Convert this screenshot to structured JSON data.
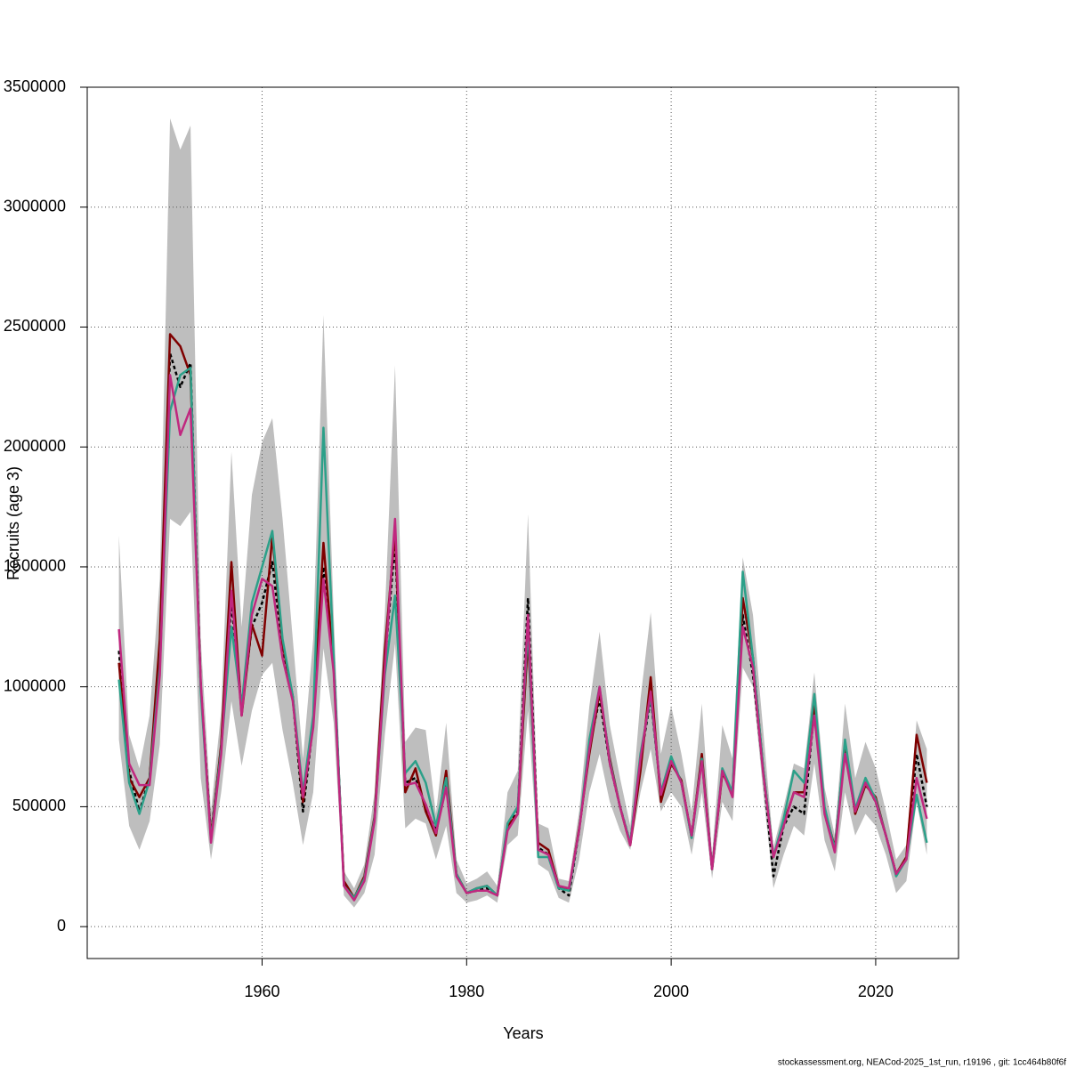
{
  "chart_data": {
    "type": "line",
    "x_label": "Years",
    "y_label": "Recruits (age 3)",
    "footer": "stockassessment.org, NEACod-2025_1st_run, r19196 , git: 1cc464b80f6f",
    "x": [
      1946,
      1947,
      1948,
      1949,
      1950,
      1951,
      1952,
      1953,
      1954,
      1955,
      1956,
      1957,
      1958,
      1959,
      1960,
      1961,
      1962,
      1963,
      1964,
      1965,
      1966,
      1967,
      1968,
      1969,
      1970,
      1971,
      1972,
      1973,
      1974,
      1975,
      1976,
      1977,
      1978,
      1979,
      1980,
      1981,
      1982,
      1983,
      1984,
      1985,
      1986,
      1987,
      1988,
      1989,
      1990,
      1991,
      1992,
      1993,
      1994,
      1995,
      1996,
      1997,
      1998,
      1999,
      2000,
      2001,
      2002,
      2003,
      2004,
      2005,
      2006,
      2007,
      2008,
      2009,
      2010,
      2011,
      2012,
      2013,
      2014,
      2015,
      2016,
      2017,
      2018,
      2019,
      2020,
      2021,
      2022,
      2023,
      2024,
      2025
    ],
    "xlim": [
      1942.9,
      2028.1
    ],
    "xticks": [
      1960,
      1980,
      2000,
      2020
    ],
    "ylim": [
      -133000,
      3500000
    ],
    "yticks": [
      0,
      500000,
      1000000,
      1500000,
      2000000,
      2500000,
      3000000,
      3500000
    ],
    "grid": true,
    "band": {
      "color": "#bebebe",
      "upper": [
        1630000,
        800000,
        660000,
        880000,
        1450000,
        3370000,
        3240000,
        3340000,
        1200000,
        480000,
        900000,
        1980000,
        1250000,
        1800000,
        2020000,
        2120000,
        1700000,
        1200000,
        700000,
        1200000,
        2550000,
        1300000,
        230000,
        160000,
        260000,
        560000,
        1300000,
        2340000,
        770000,
        830000,
        820000,
        470000,
        850000,
        280000,
        180000,
        200000,
        230000,
        170000,
        560000,
        650000,
        1720000,
        430000,
        410000,
        200000,
        190000,
        480000,
        920000,
        1230000,
        840000,
        620000,
        420000,
        950000,
        1310000,
        720000,
        920000,
        720000,
        480000,
        930000,
        300000,
        840000,
        700000,
        1540000,
        1300000,
        820000,
        330000,
        500000,
        680000,
        660000,
        1060000,
        580000,
        380000,
        930000,
        620000,
        770000,
        660000,
        480000,
        280000,
        340000,
        860000,
        740000
      ],
      "lower": [
        780000,
        420000,
        320000,
        440000,
        760000,
        1700000,
        1670000,
        1730000,
        620000,
        280000,
        560000,
        940000,
        670000,
        900000,
        1050000,
        1100000,
        820000,
        600000,
        340000,
        560000,
        1160000,
        850000,
        130000,
        80000,
        140000,
        300000,
        800000,
        1180000,
        410000,
        450000,
        430000,
        280000,
        420000,
        140000,
        100000,
        110000,
        130000,
        100000,
        340000,
        380000,
        900000,
        260000,
        230000,
        120000,
        100000,
        280000,
        560000,
        720000,
        520000,
        400000,
        320000,
        560000,
        740000,
        480000,
        560000,
        500000,
        300000,
        560000,
        200000,
        520000,
        440000,
        1080000,
        1000000,
        560000,
        160000,
        300000,
        420000,
        380000,
        680000,
        360000,
        230000,
        560000,
        380000,
        470000,
        420000,
        300000,
        140000,
        190000,
        520000,
        300000
      ]
    },
    "series": [
      {
        "color": "#000000",
        "dash": true,
        "values": [
          1150000,
          650000,
          480000,
          620000,
          1100000,
          2390000,
          2250000,
          2350000,
          1000000,
          380000,
          750000,
          1350000,
          900000,
          1250000,
          1350000,
          1520000,
          1150000,
          950000,
          480000,
          850000,
          1500000,
          1100000,
          180000,
          120000,
          200000,
          450000,
          1100000,
          1600000,
          600000,
          620000,
          500000,
          400000,
          600000,
          220000,
          140000,
          150000,
          160000,
          130000,
          420000,
          480000,
          1370000,
          330000,
          300000,
          160000,
          130000,
          400000,
          750000,
          950000,
          680000,
          500000,
          350000,
          700000,
          950000,
          560000,
          700000,
          600000,
          380000,
          700000,
          240000,
          650000,
          550000,
          1300000,
          1050000,
          650000,
          210000,
          420000,
          500000,
          470000,
          900000,
          480000,
          320000,
          750000,
          480000,
          600000,
          520000,
          380000,
          220000,
          280000,
          720000,
          500000
        ]
      },
      {
        "color": "#7f0000",
        "dash": false,
        "values": [
          1100000,
          620000,
          540000,
          620000,
          1200000,
          2470000,
          2420000,
          2300000,
          1000000,
          370000,
          760000,
          1520000,
          880000,
          1260000,
          1130000,
          1630000,
          1180000,
          960000,
          520000,
          860000,
          1600000,
          1080000,
          190000,
          120000,
          210000,
          460000,
          1150000,
          1650000,
          560000,
          660000,
          480000,
          380000,
          650000,
          220000,
          140000,
          160000,
          170000,
          130000,
          420000,
          470000,
          1200000,
          350000,
          320000,
          170000,
          150000,
          410000,
          720000,
          980000,
          700000,
          500000,
          340000,
          650000,
          1040000,
          520000,
          680000,
          610000,
          370000,
          720000,
          240000,
          640000,
          560000,
          1370000,
          1120000,
          660000,
          290000,
          430000,
          560000,
          560000,
          920000,
          490000,
          330000,
          760000,
          470000,
          590000,
          540000,
          380000,
          220000,
          290000,
          800000,
          600000
        ]
      },
      {
        "color": "#2ca089",
        "dash": false,
        "values": [
          1030000,
          600000,
          470000,
          610000,
          1080000,
          2150000,
          2300000,
          2330000,
          980000,
          360000,
          740000,
          1250000,
          920000,
          1350000,
          1500000,
          1650000,
          1200000,
          960000,
          560000,
          880000,
          2080000,
          1120000,
          170000,
          120000,
          200000,
          450000,
          1050000,
          1380000,
          640000,
          690000,
          600000,
          420000,
          620000,
          220000,
          140000,
          160000,
          170000,
          130000,
          430000,
          500000,
          1250000,
          290000,
          290000,
          160000,
          150000,
          400000,
          780000,
          1000000,
          690000,
          500000,
          350000,
          720000,
          960000,
          560000,
          710000,
          600000,
          370000,
          700000,
          240000,
          660000,
          560000,
          1480000,
          1120000,
          660000,
          290000,
          450000,
          650000,
          600000,
          970000,
          500000,
          320000,
          780000,
          490000,
          620000,
          530000,
          380000,
          210000,
          280000,
          550000,
          350000
        ]
      },
      {
        "color": "#c0287f",
        "dash": false,
        "values": [
          1240000,
          680000,
          590000,
          590000,
          1050000,
          2300000,
          2050000,
          2160000,
          1020000,
          350000,
          720000,
          1400000,
          880000,
          1300000,
          1450000,
          1420000,
          1120000,
          940000,
          540000,
          830000,
          1450000,
          1060000,
          170000,
          110000,
          190000,
          440000,
          1080000,
          1700000,
          590000,
          600000,
          510000,
          390000,
          580000,
          210000,
          140000,
          150000,
          150000,
          130000,
          400000,
          470000,
          1300000,
          320000,
          300000,
          170000,
          160000,
          400000,
          740000,
          1000000,
          680000,
          500000,
          340000,
          700000,
          980000,
          550000,
          690000,
          600000,
          380000,
          690000,
          240000,
          650000,
          540000,
          1250000,
          1080000,
          640000,
          290000,
          420000,
          560000,
          540000,
          880000,
          470000,
          310000,
          720000,
          480000,
          600000,
          520000,
          380000,
          220000,
          280000,
          620000,
          450000
        ]
      }
    ]
  }
}
